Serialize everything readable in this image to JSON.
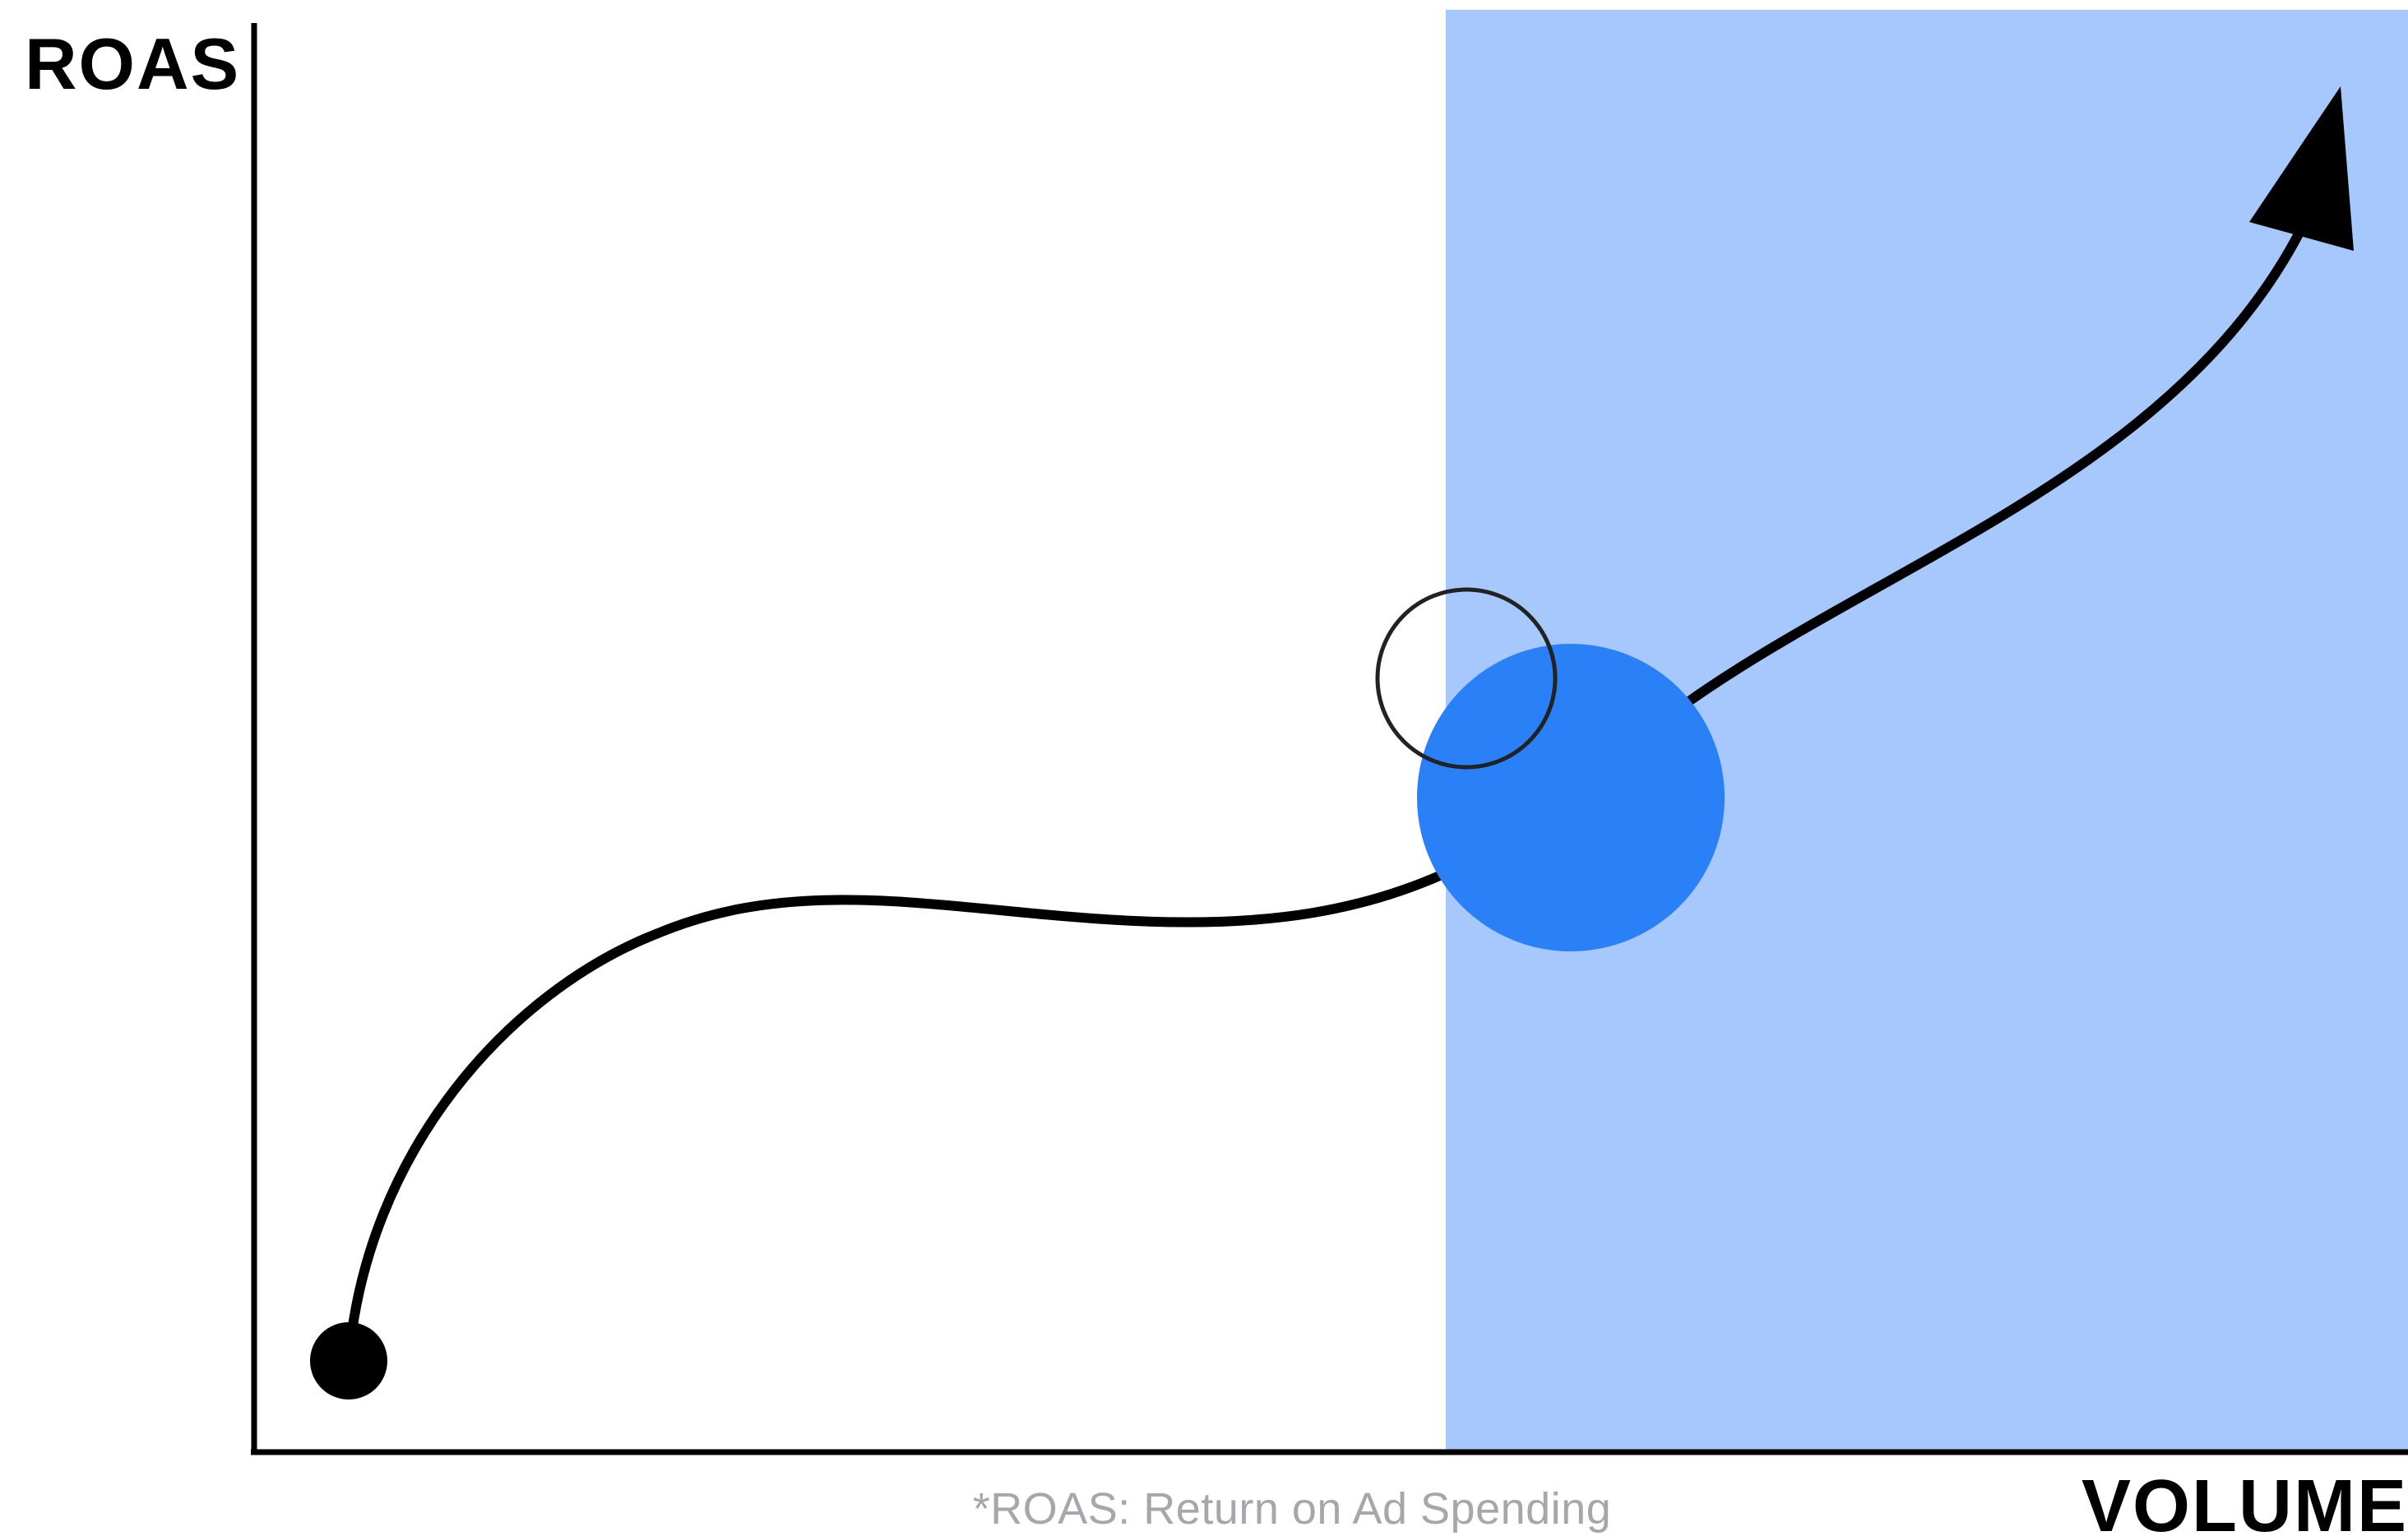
{
  "labels": {
    "y_axis": "ROAS",
    "x_axis": "VOLUME",
    "footnote": "*ROAS: Return on Ad Spending"
  },
  "colors": {
    "background": "#ffffff",
    "highlight_region": "#a6c8fc",
    "primary_point": "#2a80f6",
    "curve": "#000000",
    "axis": "#000000",
    "footnote_text": "#a6a6ad",
    "marker_outline": "#222222"
  }
}
